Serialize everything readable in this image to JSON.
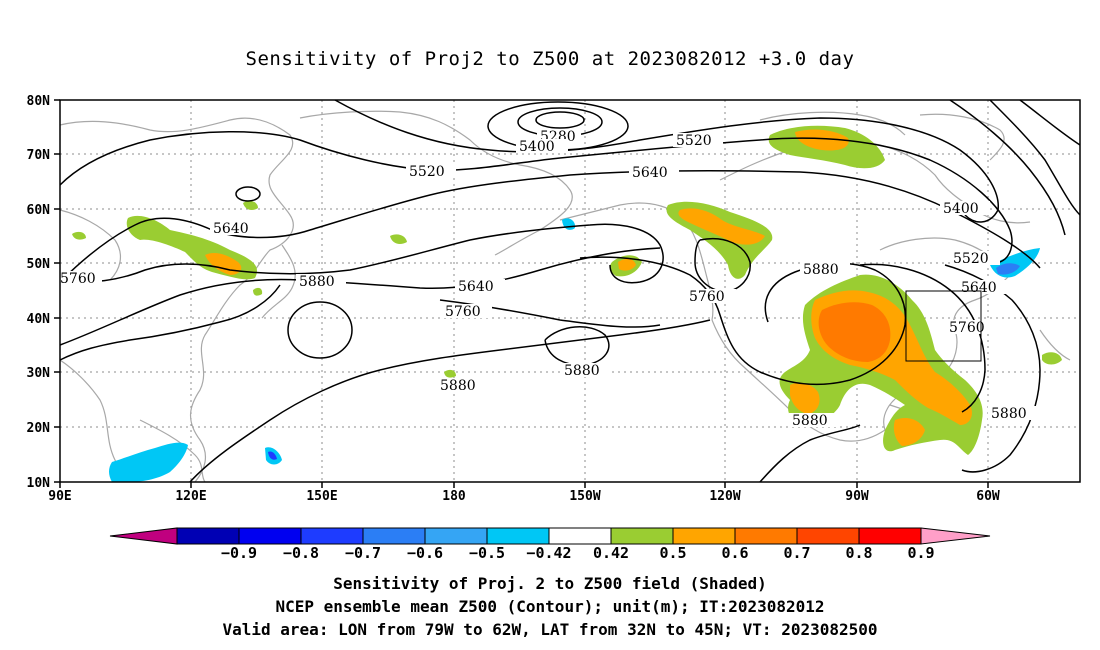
{
  "title": "Sensitivity of Proj2 to Z500 at 2023082012 +3.0 day",
  "lat_labels": [
    "80N",
    "70N",
    "60N",
    "50N",
    "40N",
    "30N",
    "20N",
    "10N"
  ],
  "lon_labels": [
    "90E",
    "120E",
    "150E",
    "180",
    "150W",
    "120W",
    "90W",
    "60W"
  ],
  "contour_labels": [
    "5280",
    "5400",
    "5520",
    "5640",
    "5760",
    "5880"
  ],
  "colorbar": {
    "ticks": [
      "-0.9",
      "-0.8",
      "-0.7",
      "-0.6",
      "-0.5",
      "-0.42",
      "0.42",
      "0.5",
      "0.6",
      "0.7",
      "0.8",
      "0.9"
    ],
    "colors": [
      "#c0007f",
      "#0000b4",
      "#0000f0",
      "#1e3cff",
      "#2b7ef5",
      "#35a5f4",
      "#00c7f5",
      "#ffffff",
      "#9acd32",
      "#ffa500",
      "#ff7a00",
      "#ff4500",
      "#ff0000",
      "#ff9fc8"
    ]
  },
  "captions": {
    "line1": "Sensitivity of Proj. 2 to Z500 field (Shaded)",
    "line2": "NCEP ensemble mean Z500 (Contour); unit(m); IT:2023082012",
    "line3": "Valid area: LON from 79W to 62W, LAT from 32N to 45N; VT: 2023082500"
  },
  "valid_area": {
    "lon_min": -79,
    "lon_max": -62,
    "lat_min": 32,
    "lat_max": 45
  }
}
